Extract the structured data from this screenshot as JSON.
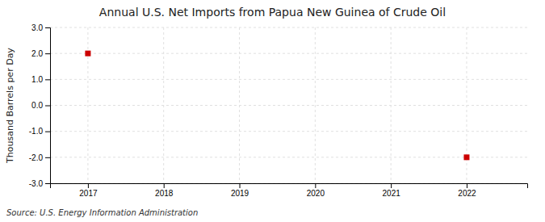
{
  "chart_data": {
    "type": "scatter",
    "title": "Annual U.S. Net Imports from Papua New Guinea of Crude Oil",
    "y_label": "Thousand Barrels per Day",
    "source": "Source: U.S. Energy Information Administration",
    "x": [
      2017,
      2022
    ],
    "values": [
      2.0,
      -2.0
    ],
    "color": "#cc0000",
    "marker": "square",
    "xlim": [
      2016.5,
      2022.8
    ],
    "xticks": [
      2017,
      2018,
      2019,
      2020,
      2021,
      2022
    ],
    "ylim": [
      -3.0,
      3.0
    ],
    "yticks": [
      {
        "value": -3.0,
        "label": "-3.0"
      },
      {
        "value": -2.0,
        "label": "-2.0"
      },
      {
        "value": -1.0,
        "label": "-1.0"
      },
      {
        "value": 0.0,
        "label": "0.0"
      },
      {
        "value": 1.0,
        "label": "1.0"
      },
      {
        "value": 2.0,
        "label": "2.0"
      },
      {
        "value": 3.0,
        "label": "3.0"
      }
    ],
    "grid": true
  }
}
